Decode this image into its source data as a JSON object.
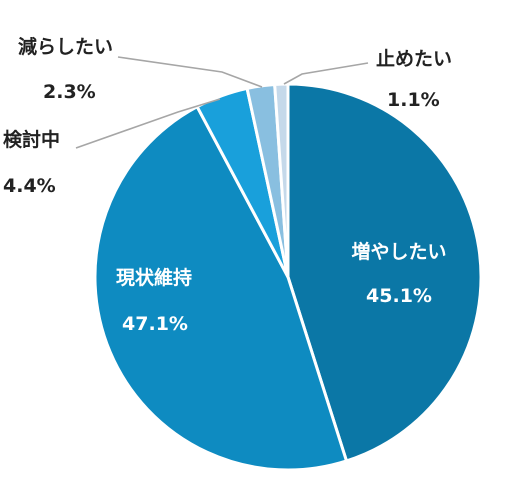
{
  "chart_data": {
    "type": "pie",
    "start_angle_deg": 0,
    "direction": "clockwise",
    "slices": [
      {
        "label": "増やしたい",
        "value": 45.1,
        "value_text": "45.1%",
        "color": "#0b77a6",
        "label_position": "inside"
      },
      {
        "label": "現状維持",
        "value": 47.1,
        "value_text": "47.1%",
        "color": "#0e8bc1",
        "label_position": "inside"
      },
      {
        "label": "検討中",
        "value": 4.4,
        "value_text": "4.4%",
        "color": "#19a0db",
        "label_position": "outside"
      },
      {
        "label": "減らしたい",
        "value": 2.3,
        "value_text": "2.3%",
        "color": "#89bfe0",
        "label_position": "outside"
      },
      {
        "label": "止めたい",
        "value": 1.1,
        "value_text": "1.1%",
        "color": "#c5d9ea",
        "label_position": "outside"
      }
    ],
    "leader_line_color": "#a6a6a6"
  }
}
